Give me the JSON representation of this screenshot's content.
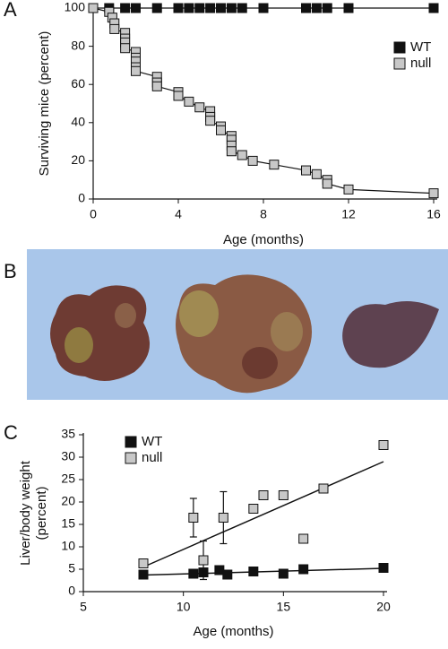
{
  "panel_labels": [
    "A",
    "B",
    "C"
  ],
  "chart_data": [
    {
      "type": "line",
      "xlabel": "Age (months)",
      "ylabel": "Surviving mice (percent)",
      "xlim": [
        0,
        16
      ],
      "xticks": [
        0,
        4,
        8,
        12,
        16
      ],
      "ylim": [
        0,
        100
      ],
      "yticks": [
        0,
        20,
        40,
        60,
        80,
        100
      ],
      "legend": "right",
      "series": [
        {
          "name": "WT",
          "color": "#111111",
          "x": [
            0,
            0.75,
            1.5,
            2,
            3,
            4,
            4.5,
            5,
            5.5,
            6,
            6.5,
            7,
            8,
            10,
            10.5,
            11,
            12,
            16
          ],
          "values": [
            100,
            100,
            100,
            100,
            100,
            100,
            100,
            100,
            100,
            100,
            100,
            100,
            100,
            100,
            100,
            100,
            100,
            100
          ]
        },
        {
          "name": "null",
          "color": "#c8c8c8",
          "x": [
            0,
            0.75,
            0.9,
            1,
            1,
            1.5,
            1.5,
            1.5,
            1.5,
            2,
            2,
            2,
            2,
            2,
            3,
            3,
            3,
            4,
            4,
            4.5,
            5,
            5.5,
            5.5,
            5.5,
            6,
            6,
            6.5,
            6.5,
            6.5,
            6.5,
            7,
            7.5,
            8.5,
            10,
            10.5,
            11,
            11,
            12,
            16
          ],
          "values": [
            100,
            98,
            95,
            92,
            89,
            87,
            84,
            82,
            79,
            77,
            74,
            72,
            69,
            67,
            64,
            61,
            59,
            56,
            54,
            51,
            48,
            46,
            43,
            41,
            38,
            36,
            33,
            31,
            28,
            25,
            23,
            20,
            18,
            15,
            13,
            10,
            8,
            5,
            3
          ]
        }
      ]
    },
    {
      "type": "scatter",
      "xlabel": "Age (months)",
      "ylabel": [
        "Liver/body weight",
        "(percent)"
      ],
      "xlim": [
        5,
        20
      ],
      "xticks": [
        5,
        10,
        15,
        20
      ],
      "ylim": [
        0,
        35
      ],
      "yticks": [
        0,
        5,
        10,
        15,
        20,
        25,
        30,
        35
      ],
      "legend": "upper left",
      "series": [
        {
          "name": "WT",
          "color": "#111111",
          "x": [
            8,
            10.5,
            11,
            11.8,
            12.2,
            13.5,
            15,
            16,
            20
          ],
          "values": [
            3.8,
            4,
            4.3,
            4.8,
            3.8,
            4.5,
            4,
            5,
            5.3
          ],
          "trend": {
            "x": [
              8,
              20
            ],
            "values": [
              3.7,
              5.2
            ]
          }
        },
        {
          "name": "null",
          "color": "#c8c8c8",
          "x": [
            8,
            10.5,
            11,
            12,
            13.5,
            14,
            15,
            16,
            17,
            20
          ],
          "values": [
            6.3,
            16.5,
            7,
            16.5,
            18.5,
            21.5,
            21.5,
            11.8,
            23,
            32.7
          ],
          "errors": [
            null,
            4.3,
            4.3,
            5.8,
            null,
            null,
            null,
            null,
            null,
            null
          ],
          "trend": {
            "x": [
              8,
              20
            ],
            "values": [
              5.5,
              29
            ]
          }
        }
      ]
    }
  ]
}
